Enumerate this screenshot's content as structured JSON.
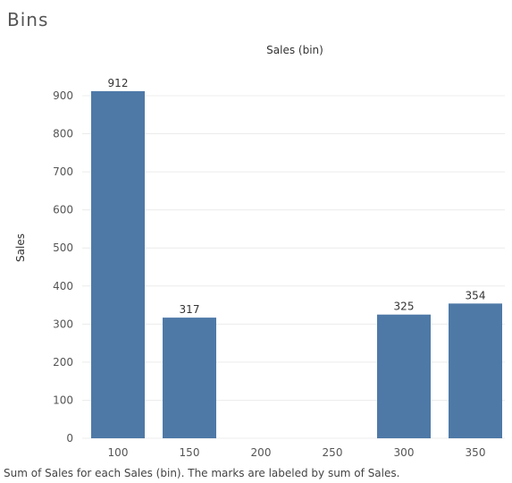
{
  "page": {
    "title": "Bins",
    "caption": "Sum of Sales for each Sales (bin).  The marks are labeled by sum of Sales."
  },
  "chart_data": {
    "type": "bar",
    "title": "Sales (bin)",
    "xlabel": "",
    "ylabel": "Sales",
    "categories": [
      "100",
      "150",
      "200",
      "250",
      "300",
      "350"
    ],
    "values": [
      912,
      317,
      0,
      0,
      325,
      354
    ],
    "data_labels": [
      "912",
      "317",
      "",
      "",
      "325",
      "354"
    ],
    "yticks": [
      "0",
      "100",
      "200",
      "300",
      "400",
      "500",
      "600",
      "700",
      "800",
      "900"
    ],
    "ylim": [
      0,
      950
    ],
    "grid": true,
    "bar_color": "#4e79a7"
  }
}
